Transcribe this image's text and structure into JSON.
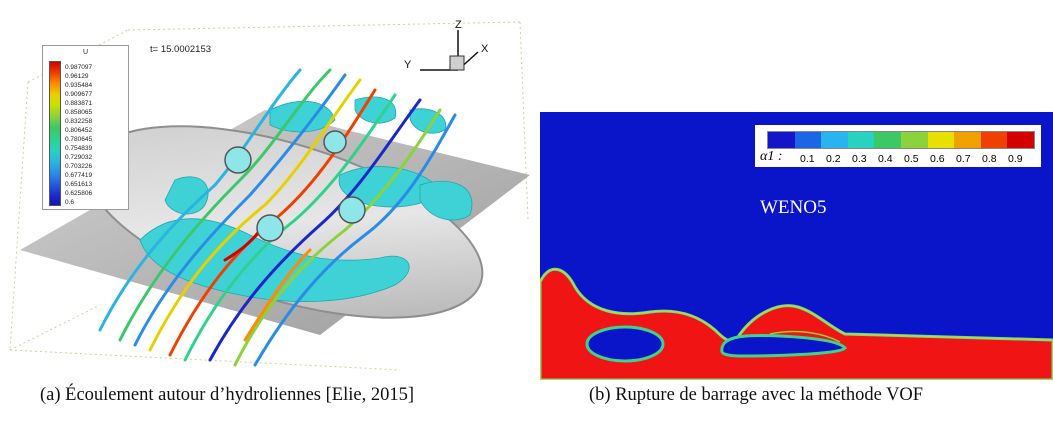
{
  "figure_a": {
    "legend_title": "U",
    "legend_values": [
      "0.987097",
      "0.96129",
      "0.935484",
      "0.909677",
      "0.883871",
      "0.858065",
      "0.832258",
      "0.806452",
      "0.780645",
      "0.754839",
      "0.729032",
      "0.703226",
      "0.677419",
      "0.651613",
      "0.625806",
      "0.6"
    ],
    "time_label": "t= 15.0002153",
    "axis_z": "Z",
    "axis_x": "X",
    "axis_y": "Y",
    "colors": {
      "floor": "#b9b9b9",
      "isosurface": "#3ed2d6",
      "bed": "#d9d9d9"
    }
  },
  "figure_b": {
    "legend_symbol": "α1 :",
    "legend_ticks": [
      "0.1",
      "0.2",
      "0.3",
      "0.4",
      "0.5",
      "0.6",
      "0.7",
      "0.8",
      "0.9"
    ],
    "label": "WENO5",
    "colors": {
      "air": "#0a14c8",
      "water": "#f01414"
    }
  },
  "captions": {
    "a": "(a) Écoulement autour d’hydroliennes [Elie, 2015]",
    "b": "(b) Rupture de barrage avec la méthode VOF"
  }
}
